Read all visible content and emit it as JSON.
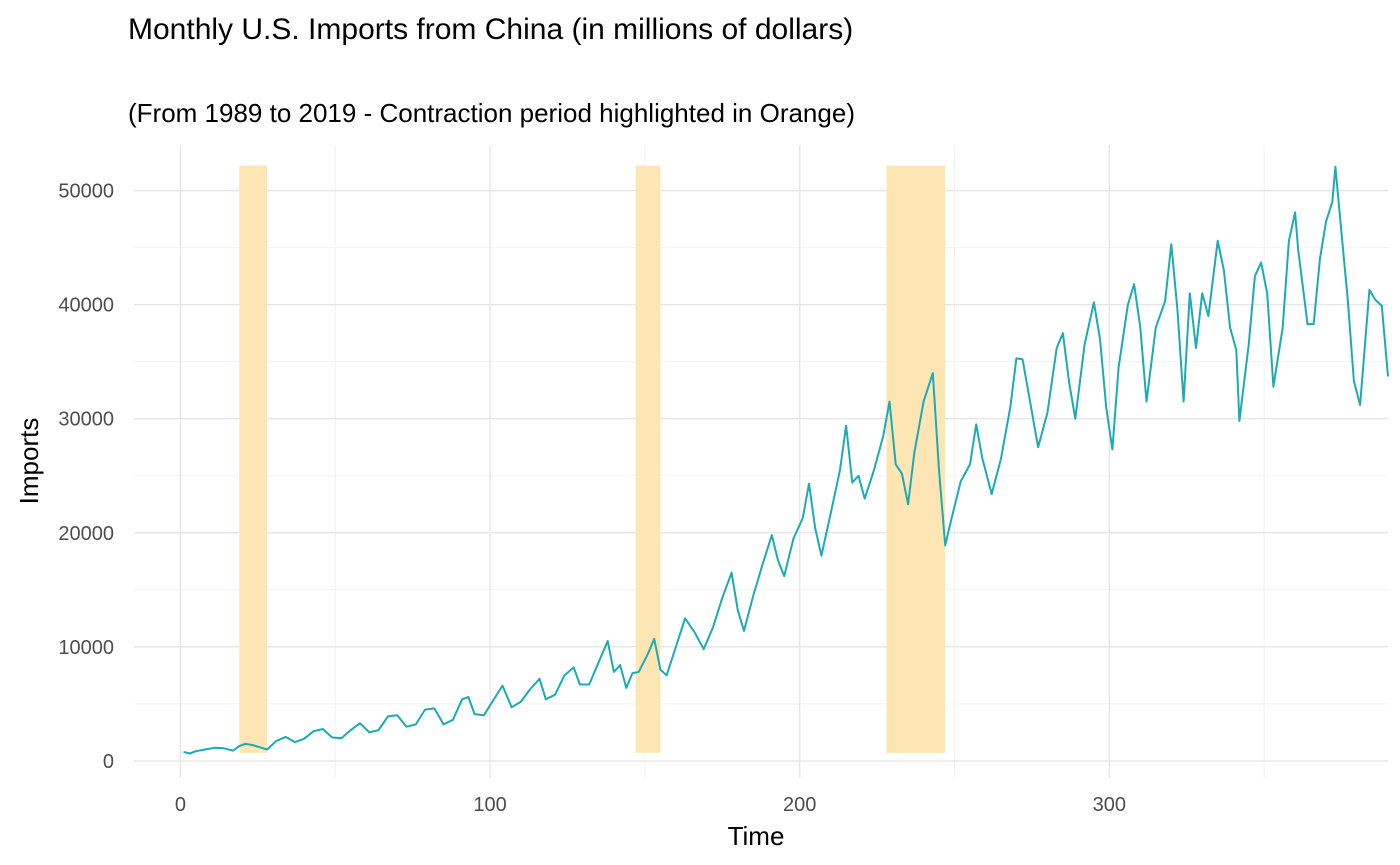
{
  "chart_data": {
    "type": "line",
    "title": "Monthly U.S. Imports from China (in millions of dollars)",
    "subtitle": "(From 1989 to 2019 - Contraction period highlighted in Orange)",
    "xlabel": "Time",
    "ylabel": "Imports",
    "xlim": [
      -15,
      390
    ],
    "ylim": [
      -1500,
      54000
    ],
    "x_ticks": [
      0,
      100,
      200,
      300
    ],
    "x_tick_labels": [
      "0",
      "100",
      "200",
      "300"
    ],
    "y_ticks": [
      0,
      10000,
      20000,
      30000,
      40000,
      50000
    ],
    "y_tick_labels": [
      "0",
      "10000",
      "20000",
      "30000",
      "40000",
      "50000"
    ],
    "grid": true,
    "legend": "none",
    "colors": {
      "line": "#1aabb5",
      "highlight": "#fde6b4",
      "grid_major": "#e6e6e6",
      "grid_minor": "#f2f2f2"
    },
    "highlights": [
      {
        "x_start": 19,
        "x_end": 28
      },
      {
        "x_start": 147,
        "x_end": 155
      },
      {
        "x_start": 228,
        "x_end": 247
      }
    ],
    "highlight_y_range": [
      700,
      52200
    ],
    "series": [
      {
        "points": [
          [
            1,
            800
          ],
          [
            3,
            650
          ],
          [
            5,
            850
          ],
          [
            8,
            1000
          ],
          [
            11,
            1150
          ],
          [
            14,
            1100
          ],
          [
            17,
            900
          ],
          [
            19,
            1300
          ],
          [
            21,
            1500
          ],
          [
            23,
            1400
          ],
          [
            25,
            1250
          ],
          [
            28,
            1000
          ],
          [
            31,
            1750
          ],
          [
            34,
            2100
          ],
          [
            37,
            1650
          ],
          [
            40,
            1950
          ],
          [
            43,
            2600
          ],
          [
            46,
            2800
          ],
          [
            49,
            2050
          ],
          [
            52,
            2000
          ],
          [
            55,
            2700
          ],
          [
            58,
            3300
          ],
          [
            61,
            2500
          ],
          [
            64,
            2700
          ],
          [
            67,
            3900
          ],
          [
            70,
            4000
          ],
          [
            73,
            3000
          ],
          [
            76,
            3200
          ],
          [
            79,
            4500
          ],
          [
            82,
            4600
          ],
          [
            85,
            3200
          ],
          [
            88,
            3600
          ],
          [
            91,
            5400
          ],
          [
            93,
            5600
          ],
          [
            95,
            4100
          ],
          [
            98,
            4000
          ],
          [
            101,
            5300
          ],
          [
            104,
            6600
          ],
          [
            107,
            4700
          ],
          [
            110,
            5200
          ],
          [
            113,
            6300
          ],
          [
            116,
            7200
          ],
          [
            118,
            5400
          ],
          [
            121,
            5800
          ],
          [
            124,
            7500
          ],
          [
            127,
            8200
          ],
          [
            129,
            6700
          ],
          [
            132,
            6700
          ],
          [
            135,
            8600
          ],
          [
            138,
            10500
          ],
          [
            140,
            7800
          ],
          [
            142,
            8400
          ],
          [
            144,
            6400
          ],
          [
            146,
            7700
          ],
          [
            148,
            7800
          ],
          [
            151,
            9400
          ],
          [
            153,
            10700
          ],
          [
            155,
            8000
          ],
          [
            157,
            7500
          ],
          [
            160,
            10000
          ],
          [
            163,
            12500
          ],
          [
            166,
            11300
          ],
          [
            169,
            9800
          ],
          [
            172,
            11700
          ],
          [
            175,
            14300
          ],
          [
            178,
            16500
          ],
          [
            180,
            13200
          ],
          [
            182,
            11400
          ],
          [
            185,
            14500
          ],
          [
            188,
            17200
          ],
          [
            191,
            19800
          ],
          [
            193,
            17600
          ],
          [
            195,
            16200
          ],
          [
            198,
            19500
          ],
          [
            201,
            21300
          ],
          [
            203,
            24300
          ],
          [
            205,
            20400
          ],
          [
            207,
            18000
          ],
          [
            210,
            21700
          ],
          [
            213,
            25500
          ],
          [
            215,
            29400
          ],
          [
            217,
            24400
          ],
          [
            219,
            25000
          ],
          [
            221,
            23000
          ],
          [
            224,
            25500
          ],
          [
            227,
            28500
          ],
          [
            229,
            31500
          ],
          [
            231,
            26000
          ],
          [
            233,
            25200
          ],
          [
            235,
            22500
          ],
          [
            237,
            27000
          ],
          [
            240,
            31500
          ],
          [
            243,
            34000
          ],
          [
            245,
            25500
          ],
          [
            247,
            18900
          ],
          [
            249,
            21200
          ],
          [
            252,
            24500
          ],
          [
            255,
            26000
          ],
          [
            257,
            29500
          ],
          [
            259,
            26500
          ],
          [
            262,
            23400
          ],
          [
            265,
            26500
          ],
          [
            268,
            31000
          ],
          [
            270,
            35300
          ],
          [
            272,
            35200
          ],
          [
            275,
            30600
          ],
          [
            277,
            27500
          ],
          [
            280,
            30500
          ],
          [
            283,
            36200
          ],
          [
            285,
            37500
          ],
          [
            287,
            33200
          ],
          [
            289,
            30000
          ],
          [
            292,
            36500
          ],
          [
            295,
            40200
          ],
          [
            297,
            37000
          ],
          [
            299,
            31000
          ],
          [
            301,
            27300
          ],
          [
            303,
            34500
          ],
          [
            306,
            40000
          ],
          [
            308,
            41800
          ],
          [
            310,
            38000
          ],
          [
            312,
            31500
          ],
          [
            315,
            38000
          ],
          [
            318,
            40300
          ],
          [
            320,
            45300
          ],
          [
            322,
            39500
          ],
          [
            324,
            31500
          ],
          [
            326,
            41000
          ],
          [
            328,
            36200
          ],
          [
            330,
            41000
          ],
          [
            332,
            39000
          ],
          [
            335,
            45600
          ],
          [
            337,
            43000
          ],
          [
            339,
            38000
          ],
          [
            341,
            36000
          ],
          [
            342,
            29800
          ],
          [
            345,
            36500
          ],
          [
            347,
            42500
          ],
          [
            349,
            43700
          ],
          [
            351,
            41000
          ],
          [
            353,
            32800
          ],
          [
            356,
            38000
          ],
          [
            358,
            45600
          ],
          [
            360,
            48100
          ],
          [
            361,
            44800
          ],
          [
            363,
            40500
          ],
          [
            364,
            38300
          ],
          [
            366,
            38300
          ],
          [
            368,
            44000
          ],
          [
            370,
            47300
          ],
          [
            372,
            49000
          ],
          [
            373,
            52100
          ],
          [
            375,
            46200
          ],
          [
            377,
            40500
          ],
          [
            379,
            33300
          ],
          [
            381,
            31200
          ],
          [
            384,
            41300
          ],
          [
            386,
            40400
          ],
          [
            388,
            39900
          ],
          [
            390,
            33700
          ]
        ]
      }
    ]
  }
}
